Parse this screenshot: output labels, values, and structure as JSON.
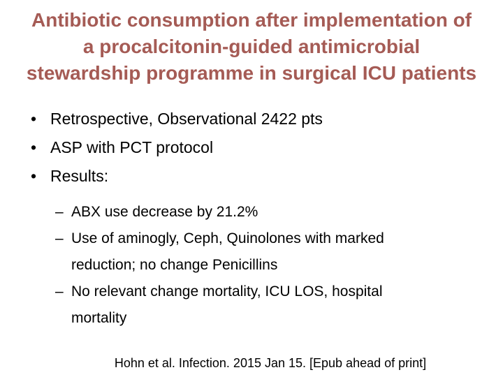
{
  "slide": {
    "title_color": "#A55B55",
    "title_lines": [
      "Antibiotic consumption after implementation of",
      "a procalcitonin-guided antimicrobial",
      "stewardship programme in surgical ICU patients"
    ],
    "bullet_marker": "•",
    "bullets": [
      "Retrospective, Observational 2422 pts",
      "ASP with PCT protocol",
      "Results:"
    ],
    "sub_bullet_marker": "–",
    "sub_bullets": [
      "ABX use decrease by 21.2%",
      "Use of aminogly, Ceph, Quinolones with marked reduction; no change Penicillins",
      "No relevant change mortality, ICU LOS, hospital mortality"
    ],
    "citation": "Hohn et al. Infection. 2015 Jan 15. [Epub ahead of print]"
  }
}
